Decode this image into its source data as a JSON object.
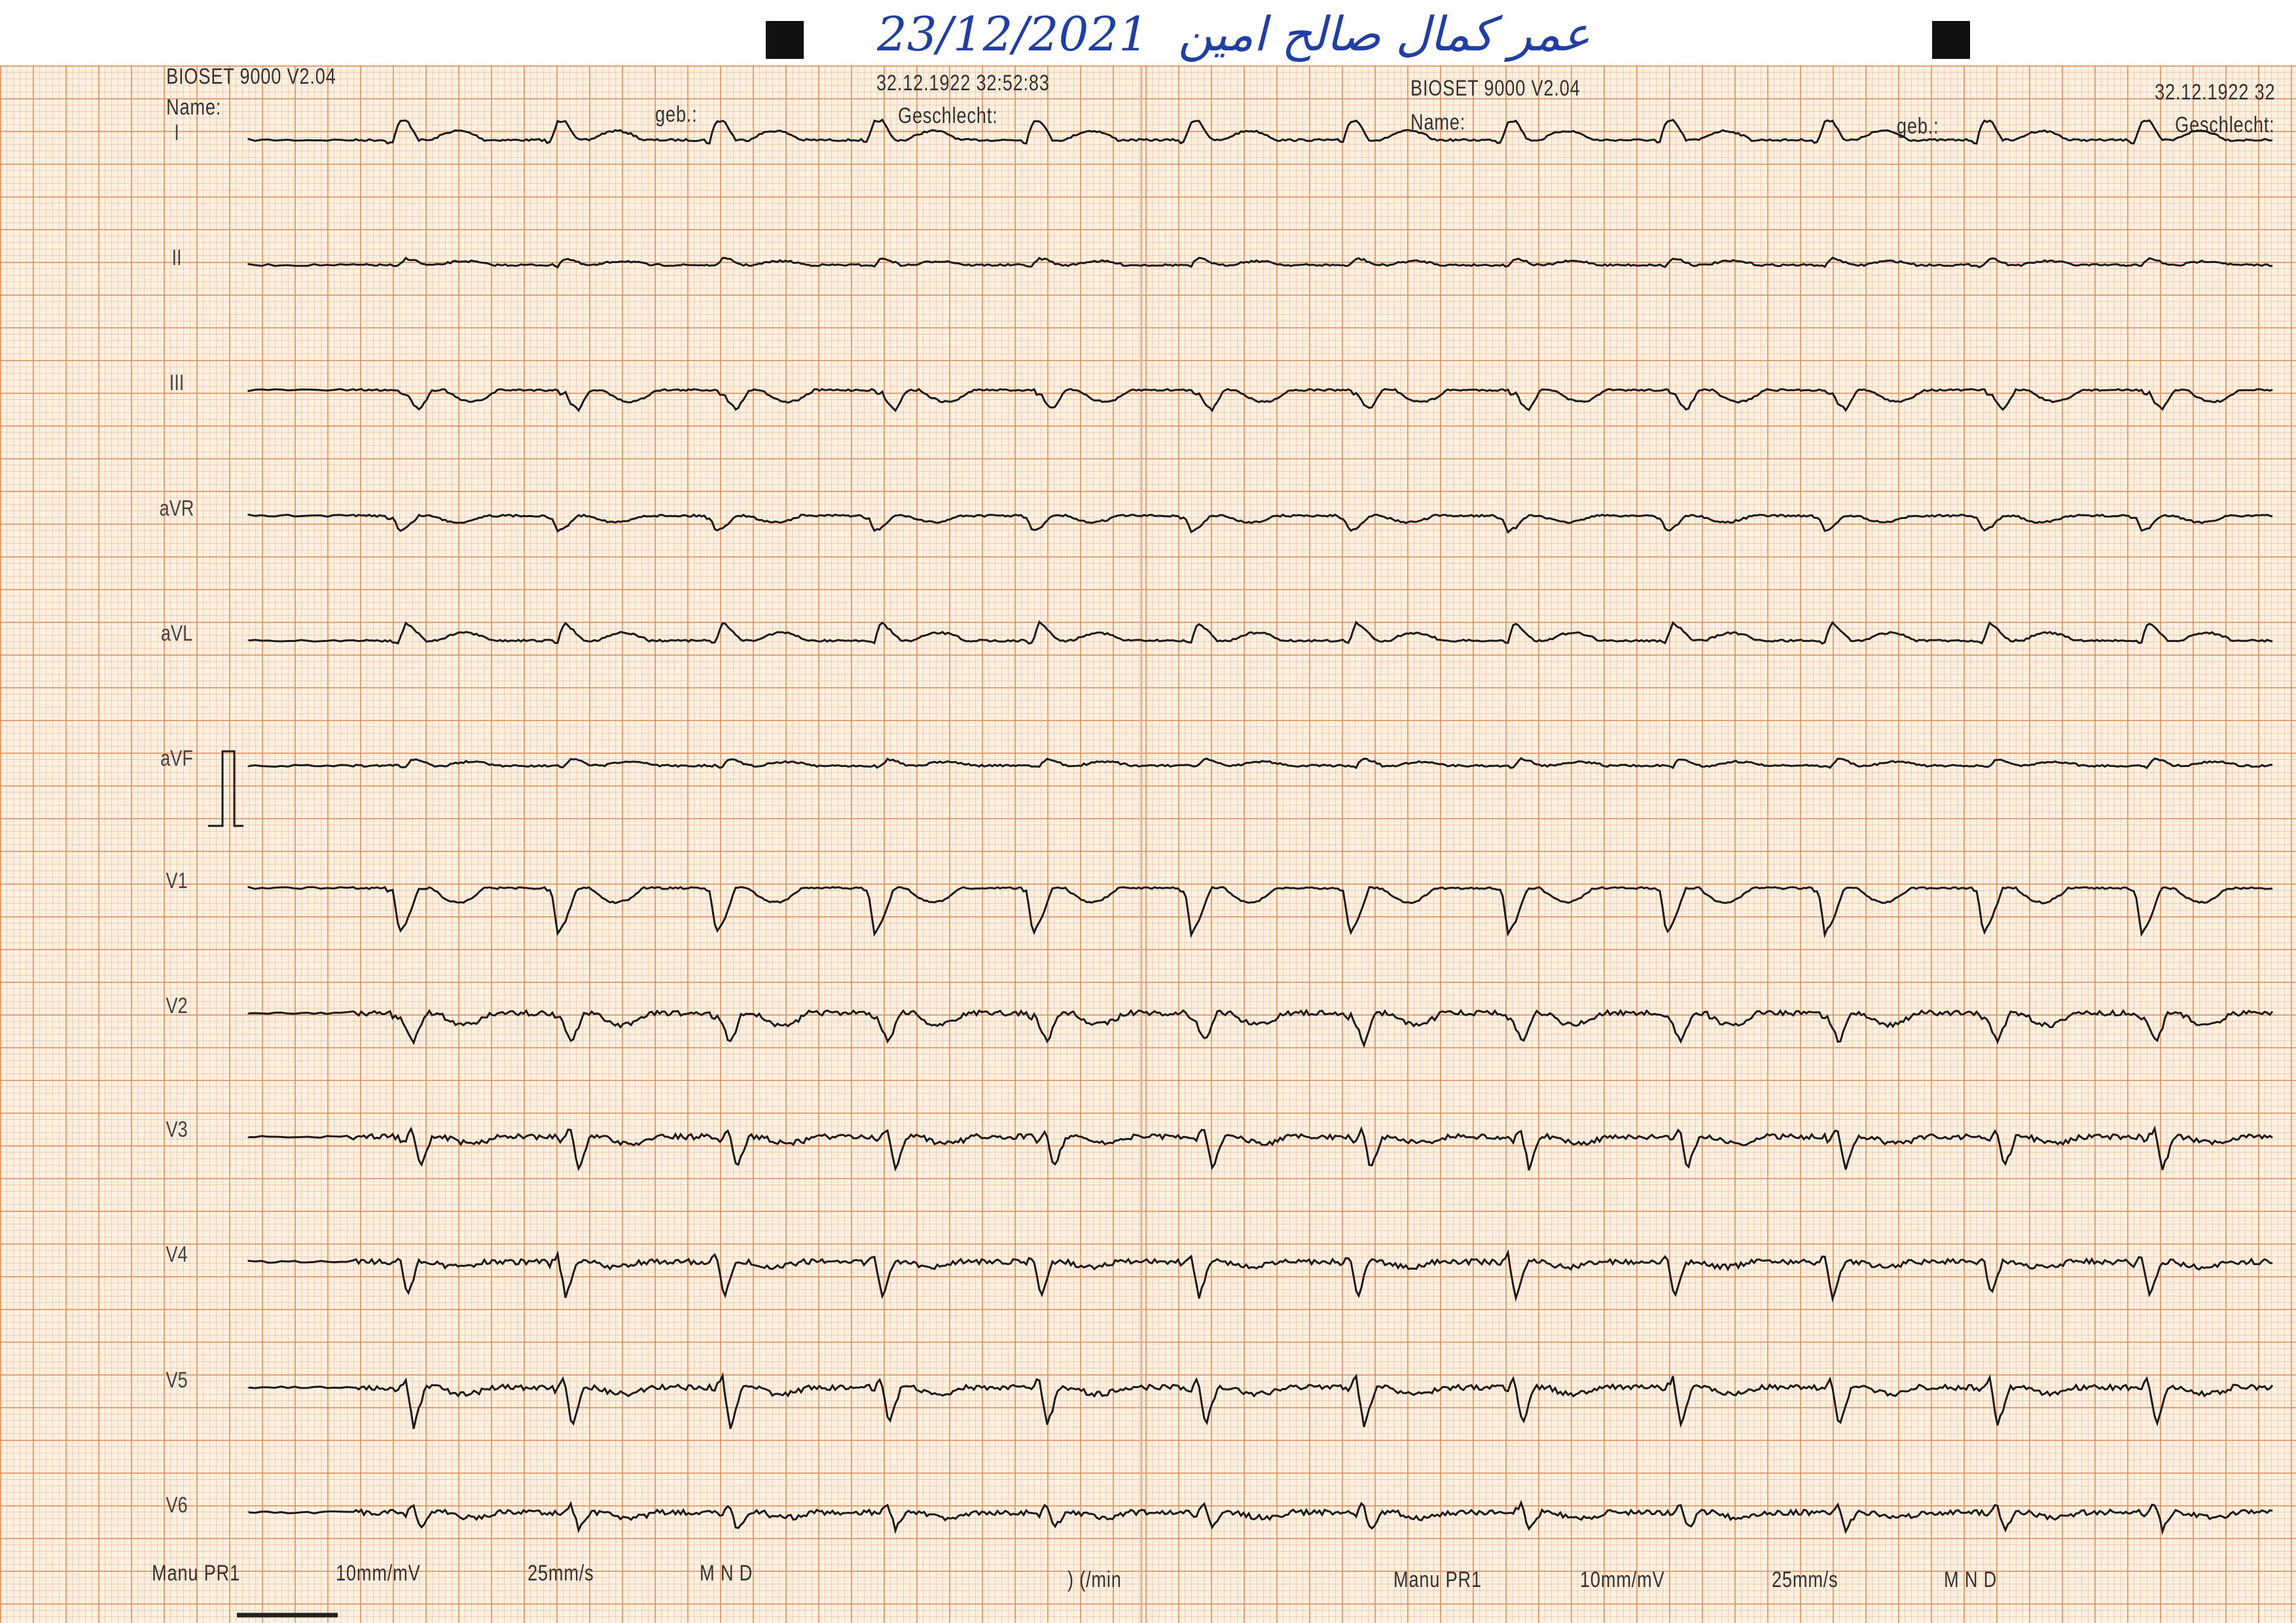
{
  "handwriting": {
    "date": "23/12/2021",
    "name": "عمر كمال صالح امين"
  },
  "header_left": {
    "device": "BIOSET 9000 V2.04",
    "name_label": "Name:",
    "dob_label": "geb.:",
    "timestamp": "32.12.1922 32:52:83",
    "sex_label": "Geschlecht:"
  },
  "header_right": {
    "device": "BIOSET 9000 V2.04",
    "name_label": "Name:",
    "dob_label": "geb.:",
    "timestamp": "32.12.1922 32",
    "sex_label": "Geschlecht:"
  },
  "leads": [
    "I",
    "II",
    "III",
    "aVR",
    "aVL",
    "aVF",
    "V1",
    "V2",
    "V3",
    "V4",
    "V5",
    "V6"
  ],
  "footer_left": {
    "mode": "Manu PR1",
    "gain": "10mm/mV",
    "speed": "25mm/s",
    "filters": "M N D",
    "rate": ") (/min"
  },
  "footer_right": {
    "mode": "Manu PR1",
    "gain": "10mm/mV",
    "speed": "25mm/s",
    "filters": "M N D"
  }
}
